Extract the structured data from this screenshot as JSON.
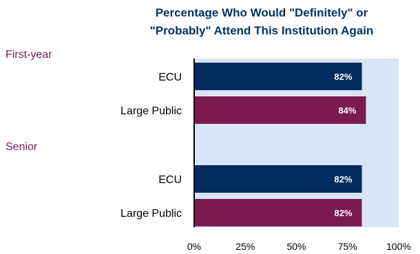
{
  "chart_data": {
    "type": "bar",
    "orientation": "horizontal",
    "title_lines": [
      "Percentage Who Would \"Definitely\" or",
      "\"Probably\" Attend This Institution Again"
    ],
    "xlim": [
      0,
      100
    ],
    "x_ticks": [
      "0%",
      "25%",
      "50%",
      "75%",
      "100%"
    ],
    "groups": [
      {
        "label": "First-year",
        "bars": [
          {
            "category": "ECU",
            "value": 82,
            "label": "82%",
            "color": "#002b5c"
          },
          {
            "category": "Large Public",
            "value": 84,
            "label": "84%",
            "color": "#7b1a52"
          }
        ]
      },
      {
        "label": "Senior",
        "bars": [
          {
            "category": "ECU",
            "value": 82,
            "label": "82%",
            "color": "#002b5c"
          },
          {
            "category": "Large Public",
            "value": 82,
            "label": "82%",
            "color": "#7b1a52"
          }
        ]
      }
    ],
    "colors": {
      "plot_background": "#d9e4f7",
      "group_label": "#7b1a52",
      "title": "#003366",
      "axis": "#000000"
    }
  }
}
